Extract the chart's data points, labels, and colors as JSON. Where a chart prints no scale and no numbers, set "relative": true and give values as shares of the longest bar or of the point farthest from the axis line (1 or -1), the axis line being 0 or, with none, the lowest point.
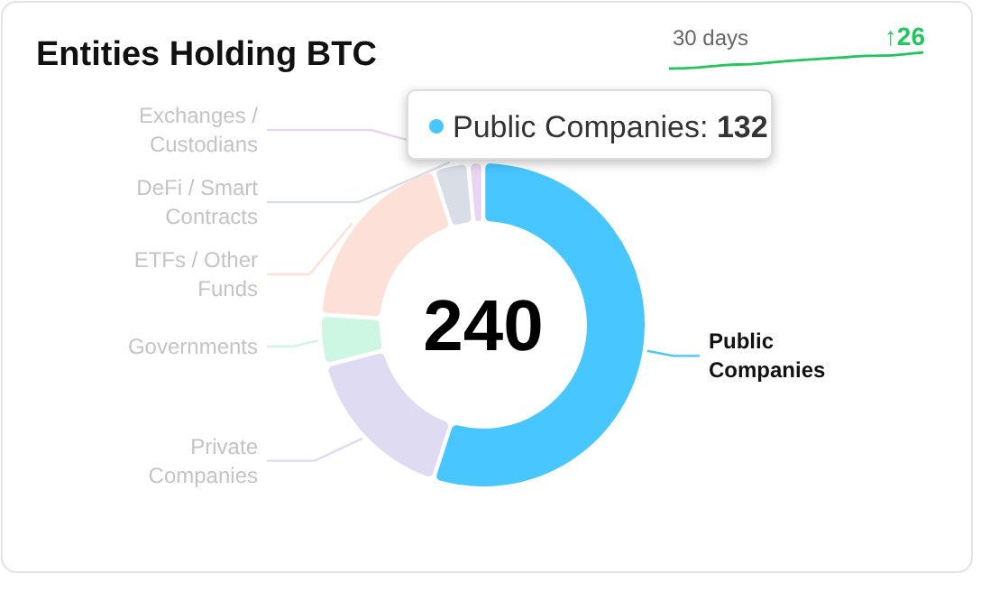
{
  "chart_data": [
    {
      "type": "donut",
      "title": "Entities Holding BTC",
      "categories": [
        "Public Companies",
        "Private Companies",
        "Governments",
        "ETFs / Other Funds",
        "DeFi / Smart Contracts",
        "Exchanges / Custodians"
      ],
      "values": [
        55,
        16,
        5,
        19,
        3.5,
        1.5
      ],
      "colors": [
        "#47c6ff",
        "#dedbf2",
        "#cdf7e2",
        "#fde1d9",
        "#d9dde6",
        "#e8d5f0"
      ],
      "annotations": [
        "240",
        {
          "text": "Public Companies: 132",
          "x": "Public Companies"
        }
      ]
    },
    {
      "type": "line",
      "title": "30 days",
      "relative": true,
      "categories": [
        null,
        null,
        null,
        null,
        null,
        null,
        null,
        null,
        null,
        null
      ],
      "series": [
        {
          "color": "#22c55e",
          "values": [
            0,
            0.06,
            0.22,
            0.28,
            0.44,
            0.56,
            0.67,
            0.78,
            0.83,
            1
          ]
        }
      ],
      "annotations": [
        "↑26"
      ]
    }
  ]
}
